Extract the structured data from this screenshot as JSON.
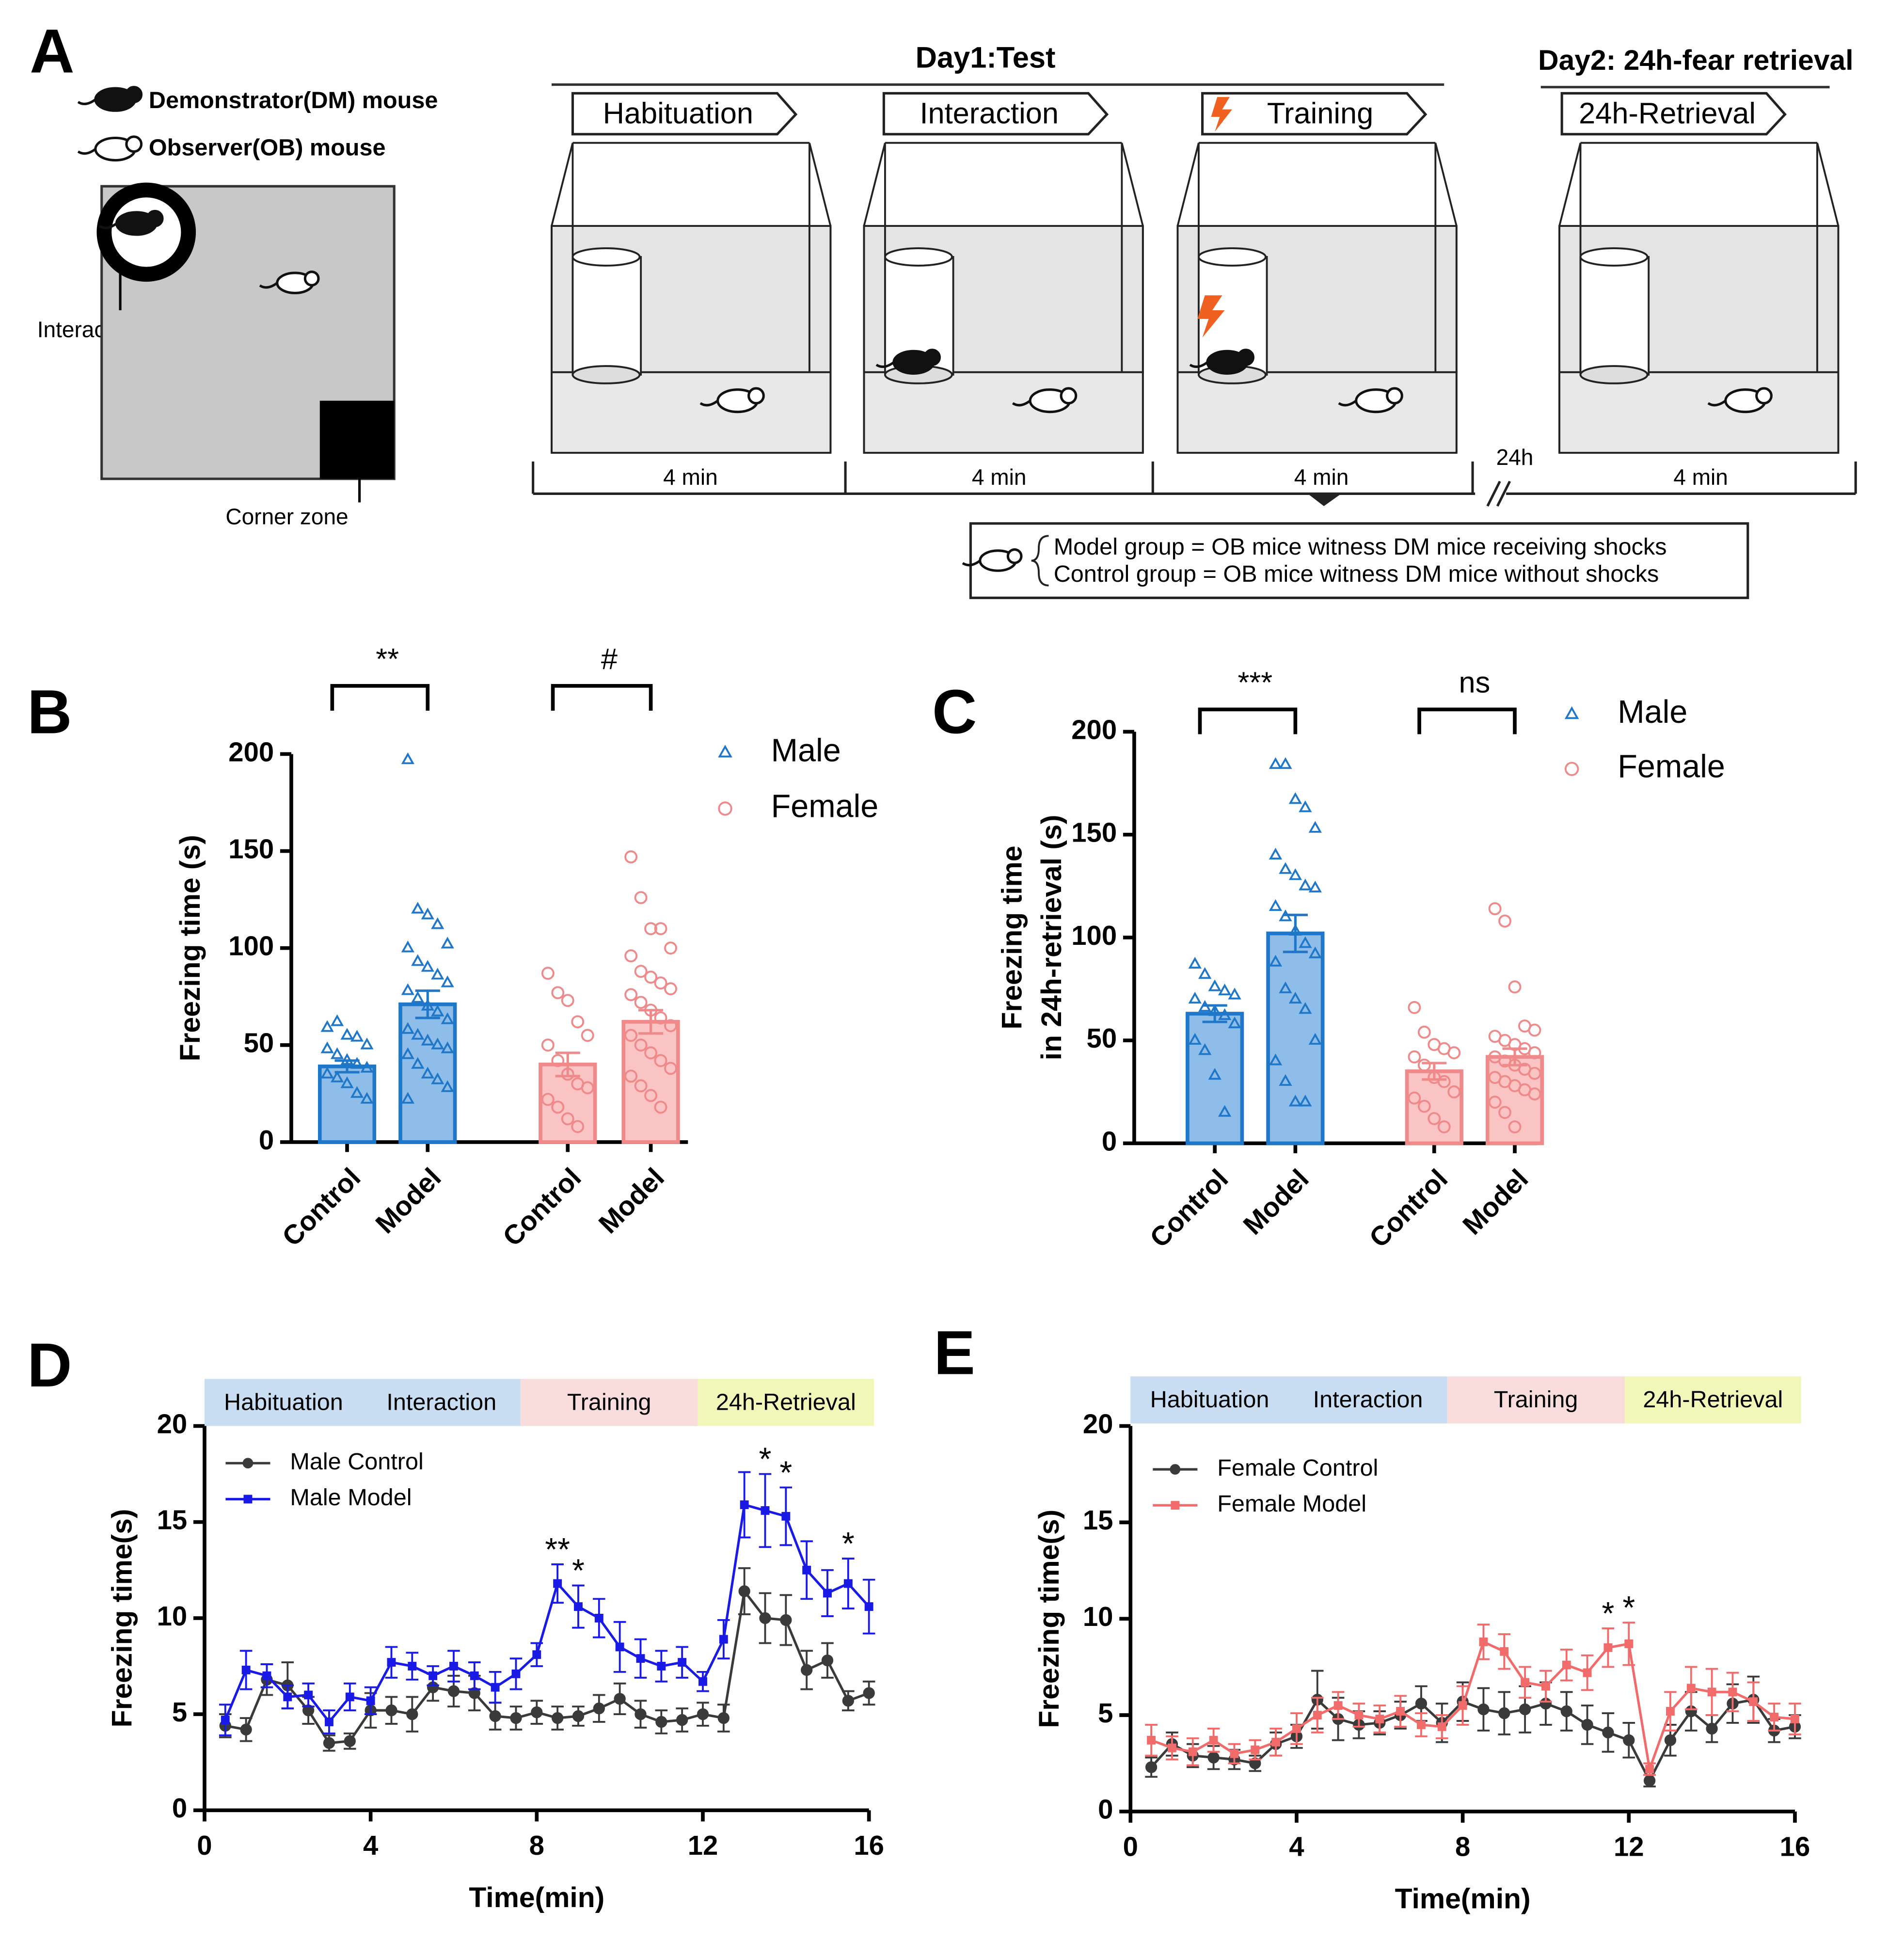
{
  "diagram": {
    "panel": "A",
    "legend": [
      "Demonstrator(DM) mouse",
      "Observer(OB) mouse"
    ],
    "arena_labels": [
      "Interaction zone",
      "Corner zone"
    ],
    "day1": "Day1:Test",
    "day2": "Day2: 24h-fear retrieval",
    "stages": [
      "Habituation",
      "Interaction",
      "Training",
      "24h-Retrieval"
    ],
    "durations": [
      "4 min",
      "4 min",
      "4 min",
      "4 min"
    ],
    "gap": "24h",
    "groups": [
      "Model  group = OB mice witness DM mice receiving shocks",
      "Control group = OB mice witness DM mice without shocks"
    ]
  },
  "chart_data": [
    {
      "type": "bar",
      "panel": "B",
      "ylabel": "Freezing time (s)",
      "ylim": [
        0,
        200
      ],
      "yticks": [
        0,
        50,
        100,
        150,
        200
      ],
      "categories": [
        "Control",
        "Model",
        "Control",
        "Model"
      ],
      "annotations": [
        "**",
        "#"
      ],
      "series": [
        {
          "name": "Male",
          "marker": "triangle",
          "color": "#1f77c9",
          "fill": "#8ebde9",
          "values": [
            39,
            71,
            null,
            null
          ],
          "errors": [
            3,
            7,
            null,
            null
          ],
          "points": [
            [
              59,
              62,
              55,
              54,
              50,
              48,
              45,
              42,
              40,
              38,
              35,
              33,
              30,
              25,
              22
            ],
            [
              197,
              120,
              117,
              112,
              102,
              100,
              93,
              90,
              86,
              82,
              78,
              74,
              70,
              67,
              63,
              58,
              55,
              52,
              50,
              48,
              45,
              40,
              35,
              32,
              28,
              22
            ],
            null,
            null
          ]
        },
        {
          "name": "Female",
          "marker": "circle",
          "color": "#f08a8a",
          "fill": "#fac4c4",
          "values": [
            null,
            null,
            40,
            62
          ],
          "errors": [
            null,
            null,
            6,
            6
          ],
          "points": [
            null,
            null,
            [
              87,
              77,
              73,
              62,
              55,
              50,
              42,
              35,
              30,
              28,
              22,
              18,
              12,
              8
            ],
            [
              147,
              126,
              110,
              110,
              100,
              96,
              88,
              85,
              82,
              79,
              76,
              72,
              68,
              64,
              60,
              55,
              50,
              46,
              42,
              38,
              34,
              29,
              24,
              18
            ]
          ]
        }
      ]
    },
    {
      "type": "bar",
      "panel": "C",
      "ylabel": [
        "Freezing time",
        "in 24h-retrieval (s)"
      ],
      "ylim": [
        0,
        200
      ],
      "yticks": [
        0,
        50,
        100,
        150,
        200
      ],
      "categories": [
        "Control",
        "Model",
        "Control",
        "Model"
      ],
      "annotations": [
        "***",
        "ns"
      ],
      "series": [
        {
          "name": "Male",
          "marker": "triangle",
          "color": "#1f77c9",
          "fill": "#8ebde9",
          "values": [
            63,
            102,
            null,
            null
          ],
          "errors": [
            4,
            9,
            null,
            null
          ],
          "points": [
            [
              87,
              82,
              76,
              74,
              72,
              70,
              66,
              64,
              62,
              58,
              50,
              45,
              33,
              15
            ],
            [
              184,
              184,
              167,
              163,
              153,
              140,
              133,
              130,
              125,
              124,
              115,
              110,
              103,
              97,
              92,
              88,
              75,
              70,
              65,
              50,
              40,
              30,
              20,
              20
            ],
            null,
            null
          ]
        },
        {
          "name": "Female",
          "marker": "circle",
          "color": "#f08a8a",
          "fill": "#fac4c4",
          "values": [
            null,
            null,
            35,
            42
          ],
          "errors": [
            null,
            null,
            4,
            4
          ],
          "points": [
            null,
            null,
            [
              66,
              54,
              48,
              46,
              44,
              42,
              38,
              32,
              30,
              25,
              22,
              18,
              12,
              8
            ],
            [
              114,
              108,
              76,
              57,
              55,
              52,
              50,
              48,
              46,
              44,
              42,
              40,
              38,
              36,
              34,
              32,
              30,
              28,
              26,
              24,
              20,
              15,
              8
            ]
          ]
        }
      ]
    },
    {
      "type": "line",
      "panel": "D",
      "xlabel": "Time(min)",
      "ylabel": "Freezing time(s)",
      "xlim": [
        0,
        16
      ],
      "xticks": [
        0,
        4,
        8,
        12,
        16
      ],
      "ylim": [
        0,
        20
      ],
      "yticks": [
        0,
        5,
        10,
        15,
        20
      ],
      "phases": [
        {
          "labels": [
            "Habituation",
            "Interaction"
          ],
          "color": "#c9ddf3"
        },
        {
          "labels": [
            "Training"
          ],
          "color": "#f9dcdc"
        },
        {
          "labels": [
            "24h-Retrieval"
          ],
          "color": "#f0f7b8"
        }
      ],
      "x": [
        0.5,
        1,
        1.5,
        2,
        2.5,
        3,
        3.5,
        4,
        4.5,
        5,
        5.5,
        6,
        6.5,
        7,
        7.5,
        8,
        8.5,
        9,
        9.5,
        10,
        10.5,
        11,
        11.5,
        12,
        12.5,
        13,
        13.5,
        14,
        14.5,
        15,
        15.5,
        16
      ],
      "series": [
        {
          "name": "Male Control",
          "marker": "circle",
          "color": "#3a3a3a",
          "values": [
            4.4,
            4.2,
            6.8,
            6.5,
            5.2,
            3.5,
            3.6,
            5.2,
            5.2,
            5.0,
            6.4,
            6.2,
            6.1,
            4.9,
            4.8,
            5.1,
            4.8,
            4.9,
            5.3,
            5.8,
            5.0,
            4.6,
            4.7,
            5.0,
            4.8,
            11.4,
            10.0,
            9.9,
            7.3,
            7.8,
            5.7,
            6.1
          ],
          "errors": [
            0.6,
            0.6,
            0.8,
            1.2,
            0.7,
            0.4,
            0.4,
            0.9,
            0.7,
            0.9,
            0.7,
            0.8,
            0.9,
            0.7,
            0.6,
            0.6,
            0.6,
            0.5,
            0.7,
            0.8,
            0.7,
            0.6,
            0.6,
            0.6,
            0.7,
            1.2,
            1.3,
            1.3,
            1.0,
            0.9,
            0.5,
            0.6
          ]
        },
        {
          "name": "Male Model",
          "marker": "square",
          "color": "#1a1ae6",
          "values": [
            4.7,
            7.3,
            7.0,
            5.9,
            6.0,
            4.6,
            5.9,
            5.7,
            7.7,
            7.5,
            7.0,
            7.5,
            7.0,
            6.4,
            7.1,
            8.1,
            11.8,
            10.6,
            10.0,
            8.5,
            7.9,
            7.5,
            7.7,
            6.7,
            8.9,
            15.9,
            15.6,
            15.3,
            12.5,
            11.3,
            11.8,
            10.6
          ],
          "errors": [
            0.8,
            1.0,
            0.6,
            0.6,
            0.6,
            0.6,
            0.7,
            0.7,
            0.8,
            0.7,
            0.5,
            0.8,
            0.7,
            0.8,
            0.8,
            0.6,
            1.0,
            1.1,
            1.0,
            1.3,
            1.0,
            0.8,
            0.8,
            0.5,
            1.0,
            1.7,
            1.9,
            1.5,
            1.5,
            1.2,
            1.3,
            1.4
          ]
        }
      ],
      "annotations": [
        {
          "text": "**",
          "x": 8.5
        },
        {
          "text": "*",
          "x": 9
        },
        {
          "text": "*",
          "x": 13.5
        },
        {
          "text": "*",
          "x": 14
        },
        {
          "text": "*",
          "x": 15.5
        }
      ]
    },
    {
      "type": "line",
      "panel": "E",
      "xlabel": "Time(min)",
      "ylabel": "Freezing time(s)",
      "xlim": [
        0,
        16
      ],
      "xticks": [
        0,
        4,
        8,
        12,
        16
      ],
      "ylim": [
        0,
        20
      ],
      "yticks": [
        0,
        5,
        10,
        15,
        20
      ],
      "phases": [
        {
          "labels": [
            "Habituation",
            "Interaction"
          ],
          "color": "#c9ddf3"
        },
        {
          "labels": [
            "Training"
          ],
          "color": "#f9dcdc"
        },
        {
          "labels": [
            "24h-Retrieval"
          ],
          "color": "#f0f7b8"
        }
      ],
      "x": [
        0.5,
        1,
        1.5,
        2,
        2.5,
        3,
        3.5,
        4,
        4.5,
        5,
        5.5,
        6,
        6.5,
        7,
        7.5,
        8,
        8.5,
        9,
        9.5,
        10,
        10.5,
        11,
        11.5,
        12,
        12.5,
        13,
        13.5,
        14,
        14.5,
        15,
        15.5,
        16
      ],
      "series": [
        {
          "name": "Female Control",
          "marker": "circle",
          "color": "#3a3a3a",
          "values": [
            2.3,
            3.5,
            2.9,
            2.8,
            2.7,
            2.5,
            3.5,
            3.9,
            5.8,
            4.8,
            4.5,
            4.6,
            5.0,
            5.6,
            4.6,
            5.7,
            5.3,
            5.1,
            5.3,
            5.6,
            5.2,
            4.5,
            4.1,
            3.7,
            1.6,
            3.7,
            5.2,
            4.3,
            5.6,
            5.8,
            4.2,
            4.4
          ],
          "errors": [
            0.5,
            0.6,
            0.6,
            0.6,
            0.5,
            0.4,
            0.6,
            0.6,
            1.5,
            1.1,
            0.7,
            0.6,
            0.7,
            0.9,
            1.0,
            1.0,
            1.1,
            1.1,
            1.2,
            1.1,
            1.0,
            1.0,
            1.0,
            0.9,
            0.3,
            0.8,
            1.0,
            0.7,
            1.0,
            1.2,
            0.6,
            0.6
          ]
        },
        {
          "name": "Female Model",
          "marker": "square",
          "color": "#f26b6b",
          "values": [
            3.7,
            3.3,
            3.1,
            3.7,
            3.0,
            3.2,
            3.6,
            4.3,
            5.0,
            5.5,
            5.0,
            4.8,
            5.2,
            4.5,
            4.4,
            5.5,
            8.8,
            8.3,
            6.7,
            6.5,
            7.6,
            7.2,
            8.5,
            8.7,
            2.2,
            5.2,
            6.4,
            6.2,
            6.2,
            5.7,
            4.9,
            4.8
          ],
          "errors": [
            0.8,
            0.6,
            0.7,
            0.6,
            0.5,
            0.5,
            0.7,
            0.8,
            0.9,
            0.7,
            0.6,
            0.7,
            0.8,
            0.6,
            0.6,
            1.0,
            0.9,
            0.9,
            0.8,
            0.8,
            0.8,
            0.9,
            1.0,
            1.1,
            0.3,
            1.0,
            1.1,
            1.2,
            1.0,
            1.0,
            0.7,
            0.8
          ]
        }
      ],
      "annotations": [
        {
          "text": "*",
          "x": 11.5
        },
        {
          "text": "*",
          "x": 12
        }
      ]
    }
  ]
}
